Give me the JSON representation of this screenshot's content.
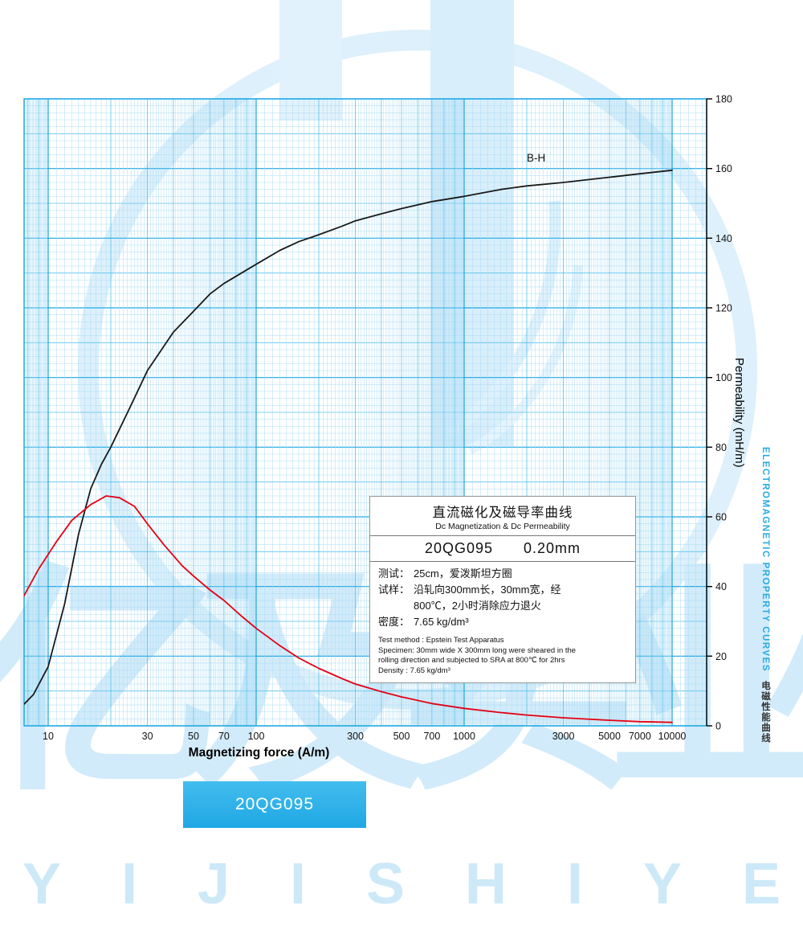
{
  "watermark": {
    "brand_cn": "亿及实业",
    "brand_en_letters": "YIJISHIYE"
  },
  "chart_data": {
    "type": "line",
    "title": "直流磁化及磁导率曲线 (Dc Magnetization & Dc Permeability)",
    "x_scale": "log",
    "xlabel": "Magnetizing force (A/m)",
    "ylabel": "Permeability (mH/m)",
    "x_range": [
      7.6,
      14600
    ],
    "y_range": [
      0,
      180
    ],
    "x_ticks": [
      10,
      30,
      50,
      70,
      100,
      300,
      500,
      700,
      1000,
      3000,
      5000,
      7000,
      10000
    ],
    "y_ticks": [
      0,
      20,
      40,
      60,
      80,
      100,
      120,
      140,
      160,
      180
    ],
    "grid": "fine cyan log-x graph paper",
    "legend_position": "none",
    "curve_label": "B-H",
    "curve_label_at": [
      2000,
      162
    ],
    "series": [
      {
        "name": "B-H",
        "color": "#1a1a1a",
        "points": [
          [
            7.6,
            6
          ],
          [
            8.5,
            9
          ],
          [
            10,
            17
          ],
          [
            12,
            35
          ],
          [
            14,
            55
          ],
          [
            16,
            68
          ],
          [
            18,
            75
          ],
          [
            20,
            80
          ],
          [
            25,
            92
          ],
          [
            30,
            102
          ],
          [
            40,
            113
          ],
          [
            50,
            119
          ],
          [
            60,
            124
          ],
          [
            70,
            127
          ],
          [
            85,
            130
          ],
          [
            100,
            132.5
          ],
          [
            130,
            136.5
          ],
          [
            160,
            139
          ],
          [
            200,
            141
          ],
          [
            260,
            143.5
          ],
          [
            300,
            145
          ],
          [
            400,
            147
          ],
          [
            500,
            148.5
          ],
          [
            700,
            150.5
          ],
          [
            1000,
            152
          ],
          [
            1500,
            154
          ],
          [
            2000,
            155
          ],
          [
            3000,
            156
          ],
          [
            5000,
            157.5
          ],
          [
            7000,
            158.5
          ],
          [
            10000,
            159.5
          ]
        ]
      },
      {
        "name": "Permeability",
        "color": "#e60012",
        "points": [
          [
            7.6,
            37
          ],
          [
            9,
            45
          ],
          [
            11,
            53
          ],
          [
            13,
            59
          ],
          [
            16,
            63.5
          ],
          [
            19,
            66
          ],
          [
            22,
            65.5
          ],
          [
            26,
            63
          ],
          [
            30,
            58
          ],
          [
            36,
            52
          ],
          [
            44,
            46
          ],
          [
            50,
            43
          ],
          [
            60,
            39
          ],
          [
            70,
            36
          ],
          [
            85,
            31.5
          ],
          [
            100,
            28
          ],
          [
            130,
            23
          ],
          [
            160,
            19.5
          ],
          [
            200,
            16.5
          ],
          [
            260,
            13.5
          ],
          [
            300,
            12
          ],
          [
            400,
            9.8
          ],
          [
            500,
            8.3
          ],
          [
            700,
            6.4
          ],
          [
            1000,
            5
          ],
          [
            1500,
            3.8
          ],
          [
            2000,
            3.1
          ],
          [
            3000,
            2.3
          ],
          [
            5000,
            1.6
          ],
          [
            7000,
            1.2
          ],
          [
            10000,
            1
          ]
        ]
      }
    ]
  },
  "side_label": {
    "en": "ELECTROMAGNETIC PROPERTY CURVES",
    "cn": "电磁性能曲线"
  },
  "infobox": {
    "title_cn": "直流磁化及磁导率曲线",
    "title_en": "Dc Magnetization & Dc Permeability",
    "grade": "20QG095",
    "thickness": "0.20mm",
    "rows_cn": [
      {
        "label": "测试：",
        "value": "25cm，爱泼斯坦方圈"
      },
      {
        "label": "试样：",
        "value": "沿轧向300mm长，30mm宽，经"
      },
      {
        "label": "",
        "value": "800℃，2小时消除应力退火"
      },
      {
        "label": "密度：",
        "value": "7.65 kg/dm³"
      }
    ],
    "notes_en": [
      "Test method : Epstein Test Apparatus",
      "Specimen: 30mm wide X 300mm long were sheared in the",
      "rolling direction and subjected to SRA at 800℃ for 2hrs",
      "Density : 7.65 kg/dm³"
    ]
  },
  "badge": {
    "label": "20QG095"
  }
}
